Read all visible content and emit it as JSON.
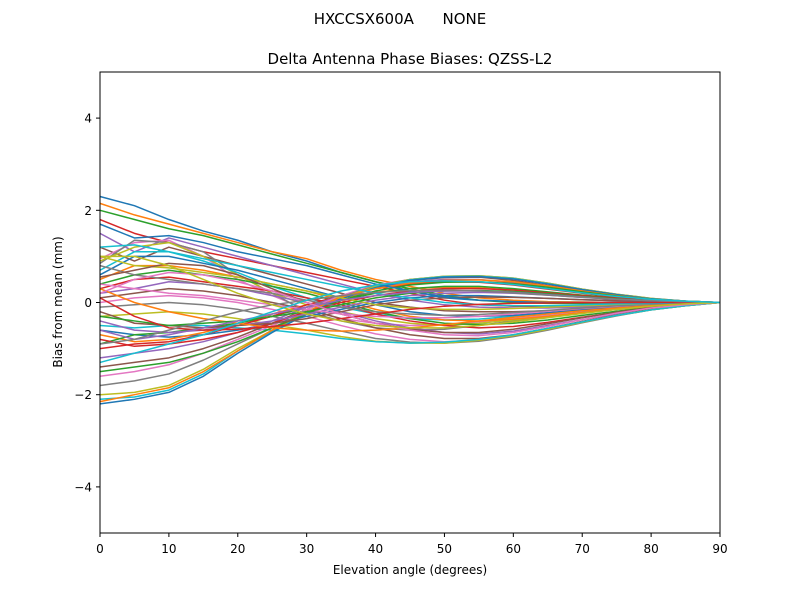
{
  "figure": {
    "suptitle": "HXCCSX600A      NONE"
  },
  "chart_data": {
    "type": "line",
    "title": "Delta Antenna Phase Biases: QZSS-L2",
    "xlabel": "Elevation angle (degrees)",
    "ylabel": "Bias from mean (mm)",
    "xlim": [
      0,
      90
    ],
    "ylim": [
      -5,
      5
    ],
    "xticks": [
      0,
      10,
      20,
      30,
      40,
      50,
      60,
      70,
      80,
      90
    ],
    "yticks": [
      -4,
      -2,
      0,
      2,
      4
    ],
    "grid": false,
    "legend": "none",
    "x": [
      0,
      5,
      10,
      15,
      20,
      25,
      30,
      35,
      40,
      45,
      50,
      55,
      60,
      65,
      70,
      75,
      80,
      85,
      90
    ],
    "colors": [
      "#1f77b4",
      "#ff7f0e",
      "#2ca02c",
      "#d62728",
      "#9467bd",
      "#8c564b",
      "#e377c2",
      "#7f7f7f",
      "#bcbd22",
      "#17becf"
    ],
    "series": [
      {
        "values": [
          2.3,
          2.1,
          1.8,
          1.55,
          1.35,
          1.1,
          0.9,
          0.65,
          0.45,
          0.25,
          0.1,
          0.05,
          0.02,
          0.01,
          0.0,
          0.0,
          0.0,
          0.0,
          0.0
        ]
      },
      {
        "values": [
          2.15,
          1.9,
          1.7,
          1.5,
          1.3,
          1.1,
          0.95,
          0.7,
          0.5,
          0.35,
          0.2,
          0.1,
          0.05,
          0.02,
          0.01,
          0.0,
          0.0,
          0.0,
          0.0
        ]
      },
      {
        "values": [
          2.0,
          1.8,
          1.6,
          1.45,
          1.25,
          1.05,
          0.85,
          0.65,
          0.45,
          0.3,
          0.15,
          0.05,
          0.0,
          -0.02,
          -0.02,
          -0.02,
          -0.01,
          0.0,
          0.0
        ]
      },
      {
        "values": [
          1.8,
          1.5,
          1.3,
          1.1,
          0.95,
          0.8,
          0.65,
          0.5,
          0.35,
          0.2,
          0.05,
          -0.05,
          -0.08,
          -0.08,
          -0.07,
          -0.05,
          -0.03,
          -0.01,
          0.0
        ]
      },
      {
        "values": [
          1.5,
          1.1,
          1.4,
          1.2,
          1.0,
          0.8,
          0.6,
          0.4,
          0.2,
          0.05,
          -0.05,
          -0.1,
          -0.12,
          -0.12,
          -0.1,
          -0.07,
          -0.04,
          -0.02,
          0.0
        ]
      },
      {
        "values": [
          1.2,
          0.9,
          1.2,
          1.0,
          0.8,
          0.6,
          0.4,
          0.2,
          0.0,
          -0.1,
          -0.18,
          -0.2,
          -0.2,
          -0.18,
          -0.14,
          -0.1,
          -0.06,
          -0.03,
          0.0
        ]
      },
      {
        "values": [
          0.95,
          1.3,
          1.35,
          1.0,
          0.5,
          0.15,
          -0.15,
          -0.35,
          -0.45,
          -0.5,
          -0.48,
          -0.42,
          -0.35,
          -0.28,
          -0.2,
          -0.14,
          -0.08,
          -0.03,
          0.0
        ]
      },
      {
        "values": [
          0.85,
          1.35,
          1.3,
          1.1,
          0.6,
          0.2,
          -0.2,
          -0.4,
          -0.55,
          -0.6,
          -0.58,
          -0.5,
          -0.4,
          -0.3,
          -0.22,
          -0.15,
          -0.09,
          -0.04,
          0.0
        ]
      },
      {
        "values": [
          0.9,
          1.2,
          1.3,
          1.0,
          0.6,
          0.2,
          -0.05,
          -0.2,
          -0.35,
          -0.45,
          -0.5,
          -0.45,
          -0.38,
          -0.3,
          -0.22,
          -0.15,
          -0.09,
          -0.04,
          0.0
        ]
      },
      {
        "values": [
          0.7,
          1.1,
          1.1,
          0.9,
          0.65,
          0.35,
          0.1,
          -0.1,
          -0.25,
          -0.35,
          -0.38,
          -0.36,
          -0.3,
          -0.24,
          -0.18,
          -0.12,
          -0.07,
          -0.03,
          0.0
        ]
      },
      {
        "values": [
          0.6,
          1.0,
          1.0,
          0.85,
          0.7,
          0.5,
          0.3,
          0.1,
          -0.05,
          -0.2,
          -0.28,
          -0.3,
          -0.28,
          -0.22,
          -0.16,
          -0.11,
          -0.06,
          -0.03,
          0.0
        ]
      },
      {
        "values": [
          0.5,
          0.8,
          0.8,
          0.7,
          0.55,
          0.4,
          0.25,
          0.05,
          -0.15,
          -0.3,
          -0.38,
          -0.4,
          -0.36,
          -0.3,
          -0.22,
          -0.15,
          -0.09,
          -0.04,
          0.0
        ]
      },
      {
        "values": [
          0.4,
          0.6,
          0.7,
          0.6,
          0.5,
          0.35,
          0.2,
          0.0,
          -0.2,
          -0.35,
          -0.45,
          -0.48,
          -0.45,
          -0.38,
          -0.28,
          -0.19,
          -0.11,
          -0.05,
          0.0
        ]
      },
      {
        "values": [
          0.3,
          0.5,
          0.55,
          0.45,
          0.35,
          0.25,
          0.1,
          -0.05,
          -0.25,
          -0.4,
          -0.5,
          -0.55,
          -0.52,
          -0.43,
          -0.32,
          -0.22,
          -0.13,
          -0.06,
          0.0
        ]
      },
      {
        "values": [
          0.2,
          0.3,
          0.45,
          0.4,
          0.3,
          0.15,
          0.0,
          -0.2,
          -0.4,
          -0.55,
          -0.65,
          -0.68,
          -0.62,
          -0.5,
          -0.37,
          -0.25,
          -0.14,
          -0.06,
          0.0
        ]
      },
      {
        "values": [
          0.1,
          0.2,
          0.3,
          0.25,
          0.15,
          0.0,
          -0.15,
          -0.35,
          -0.55,
          -0.7,
          -0.78,
          -0.78,
          -0.7,
          -0.56,
          -0.41,
          -0.27,
          -0.15,
          -0.07,
          0.0
        ]
      },
      {
        "values": [
          0.0,
          0.1,
          0.15,
          0.1,
          0.0,
          -0.15,
          -0.3,
          -0.5,
          -0.68,
          -0.8,
          -0.85,
          -0.82,
          -0.72,
          -0.58,
          -0.42,
          -0.28,
          -0.16,
          -0.07,
          0.0
        ]
      },
      {
        "values": [
          -0.1,
          -0.05,
          0.0,
          -0.05,
          -0.15,
          -0.3,
          -0.45,
          -0.62,
          -0.78,
          -0.86,
          -0.88,
          -0.84,
          -0.74,
          -0.6,
          -0.44,
          -0.29,
          -0.16,
          -0.07,
          0.0
        ]
      },
      {
        "values": [
          -0.3,
          -0.25,
          -0.2,
          -0.25,
          -0.35,
          -0.48,
          -0.6,
          -0.74,
          -0.84,
          -0.88,
          -0.88,
          -0.82,
          -0.72,
          -0.58,
          -0.43,
          -0.28,
          -0.16,
          -0.07,
          0.0
        ]
      },
      {
        "values": [
          -0.5,
          -0.55,
          -0.5,
          -0.5,
          -0.55,
          -0.6,
          -0.68,
          -0.78,
          -0.85,
          -0.88,
          -0.86,
          -0.8,
          -0.7,
          -0.56,
          -0.42,
          -0.28,
          -0.16,
          -0.07,
          0.0
        ]
      },
      {
        "values": [
          -0.6,
          -0.7,
          -0.75,
          -0.7,
          -0.6,
          -0.45,
          -0.3,
          -0.15,
          0.0,
          0.1,
          0.15,
          0.15,
          0.12,
          0.09,
          0.06,
          0.04,
          0.02,
          0.01,
          0.0
        ]
      },
      {
        "values": [
          -0.7,
          -0.85,
          -0.8,
          -0.65,
          -0.45,
          -0.25,
          -0.05,
          0.1,
          0.22,
          0.3,
          0.33,
          0.32,
          0.27,
          0.2,
          0.14,
          0.09,
          0.05,
          0.02,
          0.0
        ]
      },
      {
        "values": [
          -0.9,
          -0.7,
          -0.65,
          -0.55,
          -0.45,
          -0.3,
          -0.1,
          0.05,
          0.2,
          0.3,
          0.35,
          0.35,
          0.3,
          0.23,
          0.16,
          0.1,
          0.05,
          0.02,
          0.0
        ]
      },
      {
        "values": [
          -1.0,
          -0.9,
          -0.85,
          -0.7,
          -0.5,
          -0.3,
          -0.05,
          0.15,
          0.3,
          0.4,
          0.45,
          0.44,
          0.38,
          0.29,
          0.2,
          0.12,
          0.06,
          0.02,
          0.0
        ]
      },
      {
        "values": [
          -1.2,
          -1.1,
          -1.0,
          -0.85,
          -0.65,
          -0.4,
          -0.1,
          0.15,
          0.32,
          0.45,
          0.5,
          0.5,
          0.43,
          0.33,
          0.23,
          0.14,
          0.07,
          0.03,
          0.0
        ]
      },
      {
        "values": [
          -1.4,
          -1.3,
          -1.2,
          -1.0,
          -0.75,
          -0.45,
          -0.15,
          0.15,
          0.35,
          0.48,
          0.54,
          0.55,
          0.48,
          0.37,
          0.26,
          0.16,
          0.08,
          0.03,
          0.0
        ]
      },
      {
        "values": [
          -1.6,
          -1.5,
          -1.35,
          -1.1,
          -0.8,
          -0.5,
          -0.15,
          0.15,
          0.38,
          0.5,
          0.56,
          0.57,
          0.52,
          0.41,
          0.28,
          0.17,
          0.08,
          0.03,
          0.0
        ]
      },
      {
        "values": [
          -1.8,
          -1.7,
          -1.55,
          -1.25,
          -0.9,
          -0.55,
          -0.2,
          0.12,
          0.36,
          0.5,
          0.57,
          0.58,
          0.53,
          0.42,
          0.29,
          0.18,
          0.09,
          0.03,
          0.0
        ]
      },
      {
        "values": [
          -2.0,
          -1.95,
          -1.8,
          -1.45,
          -1.0,
          -0.6,
          -0.22,
          0.1,
          0.35,
          0.5,
          0.57,
          0.58,
          0.53,
          0.42,
          0.29,
          0.18,
          0.09,
          0.03,
          0.0
        ]
      },
      {
        "values": [
          -2.1,
          -2.05,
          -1.9,
          -1.55,
          -1.05,
          -0.62,
          -0.24,
          0.08,
          0.33,
          0.49,
          0.56,
          0.57,
          0.52,
          0.41,
          0.28,
          0.17,
          0.08,
          0.03,
          0.0
        ]
      },
      {
        "values": [
          -2.2,
          -2.1,
          -1.95,
          -1.6,
          -1.1,
          -0.65,
          -0.25,
          0.08,
          0.32,
          0.48,
          0.55,
          0.56,
          0.51,
          0.4,
          0.28,
          0.17,
          0.08,
          0.03,
          0.0
        ]
      },
      {
        "values": [
          -2.15,
          -2.0,
          -1.85,
          -1.5,
          -1.05,
          -0.6,
          -0.2,
          0.12,
          0.3,
          0.42,
          0.48,
          0.49,
          0.45,
          0.36,
          0.25,
          0.15,
          0.07,
          0.03,
          0.0
        ]
      },
      {
        "values": [
          -1.5,
          -1.4,
          -1.3,
          -1.1,
          -0.85,
          -0.55,
          -0.25,
          0.05,
          0.25,
          0.38,
          0.44,
          0.45,
          0.41,
          0.33,
          0.23,
          0.14,
          0.07,
          0.02,
          0.0
        ]
      },
      {
        "values": [
          -0.8,
          -0.95,
          -0.9,
          -0.8,
          -0.65,
          -0.45,
          -0.2,
          0.0,
          0.15,
          0.25,
          0.3,
          0.3,
          0.27,
          0.21,
          0.15,
          0.09,
          0.05,
          0.02,
          0.0
        ]
      },
      {
        "values": [
          -0.4,
          -0.6,
          -0.65,
          -0.6,
          -0.5,
          -0.4,
          -0.25,
          -0.1,
          0.05,
          0.15,
          0.2,
          0.22,
          0.2,
          0.16,
          0.11,
          0.07,
          0.04,
          0.02,
          0.0
        ]
      },
      {
        "values": [
          -0.2,
          -0.45,
          -0.5,
          -0.55,
          -0.5,
          -0.45,
          -0.35,
          -0.2,
          -0.05,
          0.05,
          0.1,
          0.12,
          0.11,
          0.09,
          0.06,
          0.04,
          0.02,
          0.01,
          0.0
        ]
      },
      {
        "values": [
          0.4,
          0.3,
          0.2,
          0.15,
          0.05,
          -0.05,
          -0.15,
          -0.25,
          -0.3,
          -0.33,
          -0.33,
          -0.3,
          -0.25,
          -0.19,
          -0.13,
          -0.08,
          -0.04,
          -0.02,
          0.0
        ]
      },
      {
        "values": [
          0.8,
          0.6,
          0.5,
          0.4,
          0.3,
          0.2,
          0.05,
          -0.1,
          -0.2,
          -0.25,
          -0.28,
          -0.26,
          -0.22,
          -0.17,
          -0.12,
          -0.07,
          -0.04,
          -0.02,
          0.0
        ]
      },
      {
        "values": [
          1.0,
          0.8,
          0.75,
          0.65,
          0.55,
          0.4,
          0.25,
          0.1,
          -0.05,
          -0.12,
          -0.15,
          -0.15,
          -0.13,
          -0.1,
          -0.07,
          -0.04,
          -0.02,
          -0.01,
          0.0
        ]
      },
      {
        "values": [
          1.2,
          1.25,
          1.1,
          0.95,
          0.8,
          0.65,
          0.5,
          0.35,
          0.2,
          0.1,
          0.0,
          -0.05,
          -0.07,
          -0.07,
          -0.05,
          -0.03,
          -0.02,
          -0.01,
          0.0
        ]
      },
      {
        "values": [
          1.7,
          1.4,
          1.45,
          1.3,
          1.1,
          0.95,
          0.8,
          0.6,
          0.4,
          0.25,
          0.12,
          0.05,
          0.02,
          0.0,
          0.0,
          0.0,
          0.0,
          0.0,
          0.0
        ]
      },
      {
        "values": [
          0.3,
          0.0,
          -0.2,
          -0.35,
          -0.45,
          -0.55,
          -0.6,
          -0.62,
          -0.6,
          -0.55,
          -0.48,
          -0.4,
          -0.32,
          -0.25,
          -0.18,
          -0.12,
          -0.07,
          -0.03,
          0.0
        ]
      },
      {
        "values": [
          -0.3,
          -0.4,
          -0.5,
          -0.45,
          -0.4,
          -0.3,
          -0.2,
          -0.05,
          0.1,
          0.2,
          0.25,
          0.26,
          0.24,
          0.19,
          0.13,
          0.08,
          0.04,
          0.02,
          0.0
        ]
      },
      {
        "values": [
          0.1,
          -0.3,
          -0.55,
          -0.6,
          -0.58,
          -0.52,
          -0.45,
          -0.35,
          -0.25,
          -0.15,
          -0.08,
          -0.04,
          -0.02,
          -0.01,
          0.0,
          0.0,
          0.0,
          0.0,
          0.0
        ]
      },
      {
        "values": [
          -0.6,
          -0.8,
          -0.7,
          -0.55,
          -0.4,
          -0.25,
          -0.1,
          0.05,
          0.15,
          0.22,
          0.25,
          0.25,
          0.22,
          0.17,
          0.12,
          0.07,
          0.04,
          0.02,
          0.0
        ]
      },
      {
        "values": [
          0.55,
          0.7,
          0.85,
          0.8,
          0.6,
          0.3,
          0.0,
          -0.25,
          -0.45,
          -0.58,
          -0.65,
          -0.65,
          -0.58,
          -0.46,
          -0.33,
          -0.21,
          -0.11,
          -0.04,
          0.0
        ]
      },
      {
        "values": [
          0.2,
          0.5,
          0.65,
          0.6,
          0.45,
          0.25,
          0.0,
          -0.25,
          -0.45,
          -0.6,
          -0.7,
          -0.72,
          -0.65,
          -0.52,
          -0.37,
          -0.23,
          -0.12,
          -0.05,
          0.0
        ]
      },
      {
        "values": [
          -0.9,
          -0.8,
          -0.6,
          -0.4,
          -0.2,
          -0.05,
          0.05,
          0.15,
          0.22,
          0.26,
          0.27,
          0.25,
          0.21,
          0.16,
          0.11,
          0.07,
          0.04,
          0.02,
          0.0
        ]
      },
      {
        "values": [
          1.0,
          1.0,
          0.8,
          0.5,
          0.2,
          -0.05,
          -0.25,
          -0.4,
          -0.5,
          -0.55,
          -0.55,
          -0.5,
          -0.42,
          -0.33,
          -0.24,
          -0.15,
          -0.08,
          -0.03,
          0.0
        ]
      },
      {
        "values": [
          -1.3,
          -1.1,
          -0.9,
          -0.7,
          -0.45,
          -0.2,
          0.05,
          0.25,
          0.38,
          0.45,
          0.47,
          0.45,
          0.39,
          0.3,
          0.21,
          0.13,
          0.07,
          0.03,
          0.0
        ]
      }
    ]
  }
}
